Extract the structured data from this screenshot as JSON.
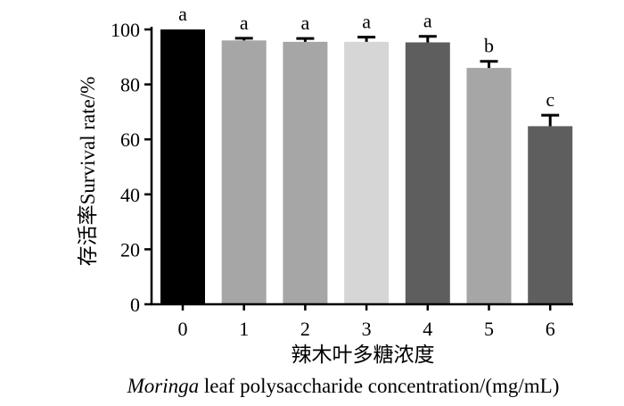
{
  "chart_data": {
    "type": "bar",
    "categories": [
      "0",
      "1",
      "2",
      "3",
      "4",
      "5",
      "6"
    ],
    "values": [
      100,
      96,
      95.5,
      95.5,
      95.3,
      86,
      64.8
    ],
    "errors": [
      0,
      0.8,
      1.2,
      1.7,
      2.2,
      2.4,
      4.0
    ],
    "significance_labels": [
      "a",
      "a",
      "a",
      "a",
      "a",
      "b",
      "c"
    ],
    "bar_colors": [
      "#000000",
      "#a6a6a6",
      "#a6a6a6",
      "#d6d6d6",
      "#5e5e5e",
      "#a6a6a6",
      "#5e5e5e"
    ],
    "ylim": [
      0,
      100
    ],
    "yticks": [
      "0",
      "20",
      "40",
      "60",
      "80",
      "100"
    ],
    "ylabel_cn": "存活率",
    "ylabel_en": "Survival rate/%",
    "xlabel_cn": "辣木叶多糖浓度",
    "xlabel_en_italic": "Moringa",
    "xlabel_en_rest": " leaf polysaccharide concentration/(mg/mL)"
  }
}
